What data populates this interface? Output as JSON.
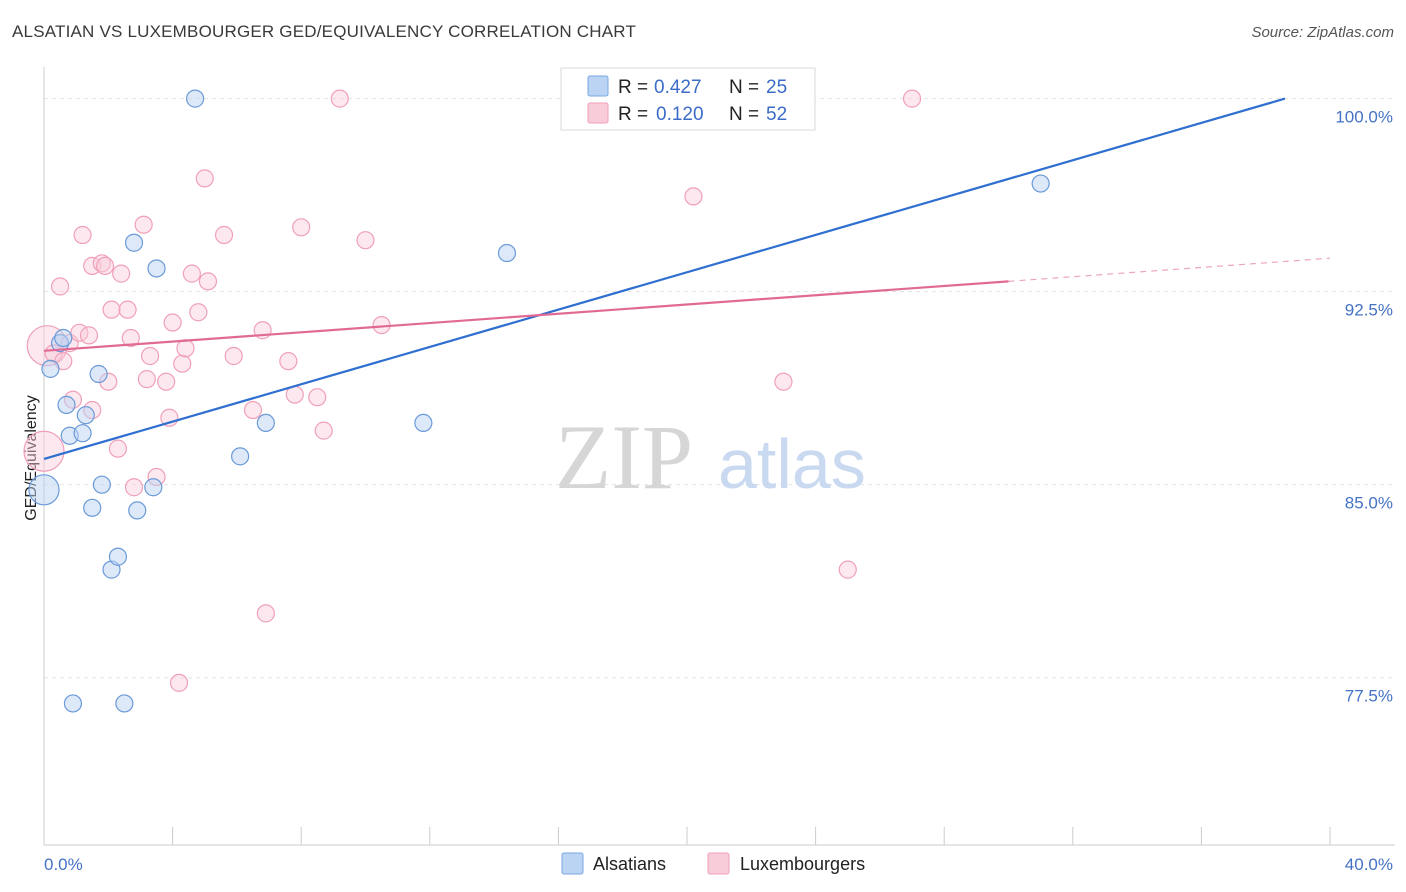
{
  "header": {
    "title": "ALSATIAN VS LUXEMBOURGER GED/EQUIVALENCY CORRELATION CHART",
    "source": "Source: ZipAtlas.com"
  },
  "watermark": {
    "zip": "ZIP",
    "atlas": "atlas"
  },
  "legend": {
    "rows": [
      {
        "r_label": "R =",
        "r_value": "0.427",
        "n_label": "N =",
        "n_value": "25"
      },
      {
        "r_label": "R =",
        "r_value": "0.120",
        "n_label": "N =",
        "n_value": "52"
      }
    ]
  },
  "bottom_legend": [
    "Alsatians",
    "Luxembourgers"
  ],
  "chart_data": {
    "type": "scatter",
    "title": "ALSATIAN VS LUXEMBOURGER GED/EQUIVALENCY CORRELATION CHART",
    "ylabel": "GED/Equivalency",
    "xlabel": "",
    "x_range": [
      0,
      40
    ],
    "y_range": [
      71,
      101.5
    ],
    "x_tick_labels": [
      "0.0%",
      "40.0%"
    ],
    "y_ticks": [
      77.5,
      85.0,
      92.5,
      100.0
    ],
    "y_tick_labels": [
      "77.5%",
      "85.0%",
      "92.5%",
      "100.0%"
    ],
    "grid": true,
    "legend_position": "top-center",
    "colors": {
      "Alsatians": "#6fa3e0",
      "Luxembourgers": "#f0a0b8",
      "alsatian_line": "#2f6fd0",
      "luxembourger_line": "#e06a94"
    },
    "series": [
      {
        "name": "Alsatians",
        "r": 0.427,
        "n": 25,
        "points": [
          {
            "x": 0.0,
            "y": 84.8,
            "big": true
          },
          {
            "x": 0.2,
            "y": 89.5
          },
          {
            "x": 0.5,
            "y": 90.5
          },
          {
            "x": 0.6,
            "y": 90.7
          },
          {
            "x": 0.7,
            "y": 88.1
          },
          {
            "x": 0.8,
            "y": 86.9
          },
          {
            "x": 0.9,
            "y": 76.5
          },
          {
            "x": 1.2,
            "y": 87.0
          },
          {
            "x": 1.3,
            "y": 87.7
          },
          {
            "x": 1.5,
            "y": 84.1
          },
          {
            "x": 1.7,
            "y": 89.3
          },
          {
            "x": 1.8,
            "y": 85.0
          },
          {
            "x": 2.1,
            "y": 81.7
          },
          {
            "x": 2.3,
            "y": 82.2
          },
          {
            "x": 2.5,
            "y": 76.5
          },
          {
            "x": 2.8,
            "y": 94.4
          },
          {
            "x": 2.9,
            "y": 84.0
          },
          {
            "x": 3.4,
            "y": 84.9
          },
          {
            "x": 3.5,
            "y": 93.4
          },
          {
            "x": 4.7,
            "y": 100.0
          },
          {
            "x": 6.1,
            "y": 86.1
          },
          {
            "x": 6.9,
            "y": 87.4
          },
          {
            "x": 11.8,
            "y": 87.4
          },
          {
            "x": 14.4,
            "y": 94.0
          },
          {
            "x": 31.0,
            "y": 96.7
          }
        ]
      },
      {
        "name": "Luxembourgers",
        "r": 0.12,
        "n": 52,
        "points": [
          {
            "x": 0.0,
            "y": 86.3,
            "big": true
          },
          {
            "x": 0.1,
            "y": 90.4,
            "big": true
          },
          {
            "x": 0.3,
            "y": 90.1
          },
          {
            "x": 0.5,
            "y": 92.7
          },
          {
            "x": 0.6,
            "y": 89.8
          },
          {
            "x": 0.8,
            "y": 90.5
          },
          {
            "x": 0.9,
            "y": 88.3
          },
          {
            "x": 1.1,
            "y": 90.9
          },
          {
            "x": 1.2,
            "y": 94.7
          },
          {
            "x": 1.4,
            "y": 90.8
          },
          {
            "x": 1.5,
            "y": 87.9
          },
          {
            "x": 1.5,
            "y": 93.5
          },
          {
            "x": 1.8,
            "y": 93.6
          },
          {
            "x": 1.9,
            "y": 93.5
          },
          {
            "x": 2.0,
            "y": 89.0
          },
          {
            "x": 2.1,
            "y": 91.8
          },
          {
            "x": 2.3,
            "y": 86.4
          },
          {
            "x": 2.4,
            "y": 93.2
          },
          {
            "x": 2.6,
            "y": 91.8
          },
          {
            "x": 2.7,
            "y": 90.7
          },
          {
            "x": 2.8,
            "y": 84.9
          },
          {
            "x": 3.1,
            "y": 95.1
          },
          {
            "x": 3.2,
            "y": 89.1
          },
          {
            "x": 3.3,
            "y": 90.0
          },
          {
            "x": 3.5,
            "y": 85.3
          },
          {
            "x": 3.8,
            "y": 89.0
          },
          {
            "x": 3.9,
            "y": 87.6
          },
          {
            "x": 4.0,
            "y": 91.3
          },
          {
            "x": 4.2,
            "y": 77.3
          },
          {
            "x": 4.3,
            "y": 89.7
          },
          {
            "x": 4.4,
            "y": 90.3
          },
          {
            "x": 4.6,
            "y": 93.2
          },
          {
            "x": 4.8,
            "y": 91.7
          },
          {
            "x": 5.0,
            "y": 96.9
          },
          {
            "x": 5.1,
            "y": 92.9
          },
          {
            "x": 5.6,
            "y": 94.7
          },
          {
            "x": 5.9,
            "y": 90.0
          },
          {
            "x": 6.5,
            "y": 87.9
          },
          {
            "x": 6.8,
            "y": 91.0
          },
          {
            "x": 6.9,
            "y": 80.0
          },
          {
            "x": 7.6,
            "y": 89.8
          },
          {
            "x": 7.8,
            "y": 88.5
          },
          {
            "x": 8.0,
            "y": 95.0
          },
          {
            "x": 8.5,
            "y": 88.4
          },
          {
            "x": 8.7,
            "y": 87.1
          },
          {
            "x": 9.2,
            "y": 100.0
          },
          {
            "x": 10.0,
            "y": 94.5
          },
          {
            "x": 10.5,
            "y": 91.2
          },
          {
            "x": 20.2,
            "y": 96.2
          },
          {
            "x": 23.0,
            "y": 89.0
          },
          {
            "x": 25.0,
            "y": 81.7
          },
          {
            "x": 27.0,
            "y": 100.0
          }
        ]
      }
    ],
    "trend_lines": [
      {
        "series": "Alsatians",
        "x1": 0.0,
        "y1": 86.0,
        "x2": 38.6,
        "y2": 100.0
      },
      {
        "series": "Luxembourgers",
        "x1": 0.0,
        "y1": 90.2,
        "x2": 30.0,
        "y2": 92.9,
        "dashed_to_x": 40.0,
        "dashed_to_y": 93.8
      }
    ]
  }
}
